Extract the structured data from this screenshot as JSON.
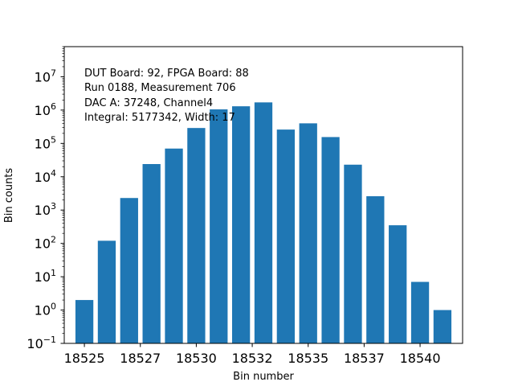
{
  "chart_data": {
    "type": "bar",
    "x": [
      18525,
      18526,
      18527,
      18528,
      18529,
      18530,
      18531,
      18532,
      18533,
      18534,
      18535,
      18536,
      18537,
      18538,
      18539,
      18540,
      18541
    ],
    "values": [
      2,
      120,
      2300,
      24000,
      70000,
      290000,
      1050000,
      1300000,
      1700000,
      260000,
      400000,
      155000,
      23000,
      2600,
      350,
      7,
      1
    ],
    "xlabel": "Bin number",
    "ylabel": "Bin counts",
    "yscale": "log",
    "ylim": [
      0.1,
      80000000
    ],
    "xticks": [
      "18525",
      "18527",
      "18530",
      "18532",
      "18535",
      "18537",
      "18540"
    ],
    "xtick_positions": [
      18525,
      18527.5,
      18530,
      18532.5,
      18535,
      18537.5,
      18540
    ],
    "ytick_exponents": [
      "-1",
      "0",
      "1",
      "2",
      "3",
      "4",
      "5",
      "6",
      "7"
    ],
    "bar_color": "#1f77b4",
    "grid": false,
    "annotations": [
      "DUT Board: 92, FPGA Board: 88",
      "Run 0188, Measurement 706",
      "DAC A: 37248, Channel4",
      "Integral: 5177342, Width: 17"
    ]
  }
}
